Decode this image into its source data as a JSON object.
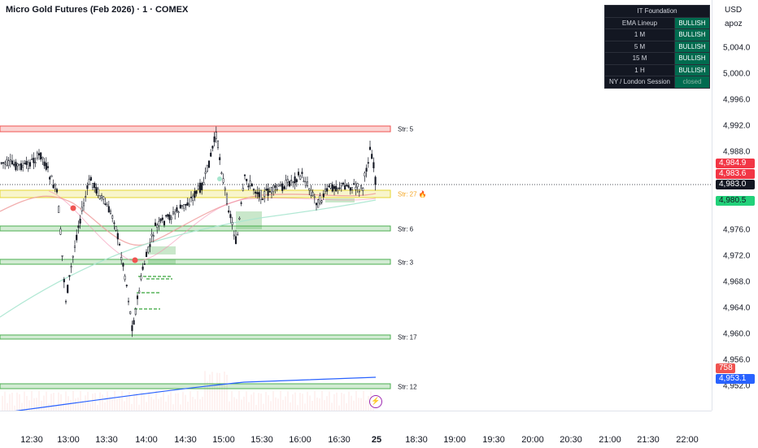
{
  "header": {
    "title": "Micro Gold Futures (Feb 2026) · 1 · COMEX"
  },
  "price_axis": {
    "currency": "USD",
    "label": "apoz",
    "ticks": [
      "5,004.0",
      "5,000.0",
      "4,996.0",
      "4,992.0",
      "4,988.0",
      "4,976.0",
      "4,972.0",
      "4,968.0",
      "4,964.0",
      "4,960.0",
      "4,956.0",
      "4,952.0"
    ],
    "tick_values": [
      5004,
      5000,
      4996,
      4992,
      4988,
      4976,
      4972,
      4968,
      4964,
      4960,
      4956,
      4952
    ]
  },
  "price_labels": {
    "red1": "4,984.9",
    "red2": "4,983.6",
    "current": "4,983.0",
    "green": "4,980.5",
    "volume": "758",
    "blue": "4,953.1"
  },
  "time_axis": {
    "ticks": [
      "12:30",
      "13:00",
      "13:30",
      "14:00",
      "14:30",
      "15:00",
      "15:30",
      "16:00",
      "16:30",
      "25",
      "18:30",
      "19:00",
      "19:30",
      "20:00",
      "20:30",
      "21:00",
      "21:30",
      "22:00"
    ]
  },
  "strength_labels": [
    "Str: 5",
    "Str: 27 🔥",
    "Str: 6",
    "Str: 3",
    "Str: 17",
    "Str: 12"
  ],
  "panel": {
    "title": "IT Foundation",
    "rows": [
      {
        "label": "EMA Lineup",
        "value": "BULLISH"
      },
      {
        "label": "1 M",
        "value": "BULLISH"
      },
      {
        "label": "5 M",
        "value": "BULLISH"
      },
      {
        "label": "15 M",
        "value": "BULLISH"
      },
      {
        "label": "1 H",
        "value": "BULLISH"
      },
      {
        "label": "NY / London Session",
        "value": "closed"
      }
    ]
  },
  "colors": {
    "candle": "#131722",
    "zone_green": "#4caf50",
    "zone_red": "#ef5350",
    "zone_yellow": "#e5d632",
    "price_red": "#f23645",
    "price_green": "#22d17a",
    "price_blue": "#2962ff",
    "volume": "#ef5350",
    "current": "#131722"
  }
}
